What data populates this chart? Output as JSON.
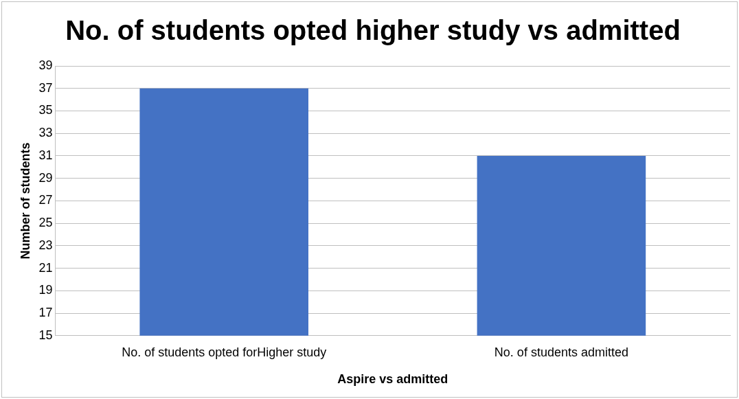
{
  "chart_data": {
    "type": "bar",
    "title": "No. of students opted higher study vs admitted",
    "xlabel": "Aspire vs admitted",
    "ylabel": "Number of students",
    "categories": [
      "No. of students opted forHigher study",
      "No. of students admitted"
    ],
    "values": [
      37,
      31
    ],
    "color": "#4472c4",
    "ylim": [
      15,
      39
    ],
    "yticks": [
      15,
      17,
      19,
      21,
      23,
      25,
      27,
      29,
      31,
      33,
      35,
      37,
      39
    ],
    "grid": "y"
  }
}
